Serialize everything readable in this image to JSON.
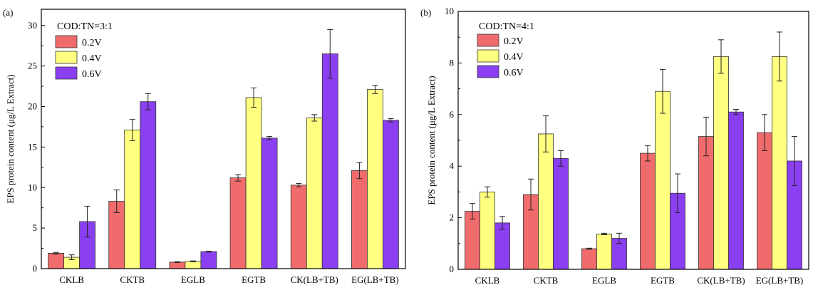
{
  "chart_data": [
    {
      "type": "bar",
      "panel_label": "(a)",
      "legend_title": "COD:TN=3:1",
      "legend_position": "top-left",
      "ylabel": "EPS protein content (μg/L Extract)",
      "xlabel": "",
      "ylim": [
        0,
        32
      ],
      "yticks": [
        0,
        5,
        10,
        15,
        20,
        25,
        30
      ],
      "categories": [
        "CKLB",
        "CKTB",
        "EGLB",
        "EGTB",
        "CK(LB+TB)",
        "EG(LB+TB)"
      ],
      "series": [
        {
          "name": "0.2V",
          "color": "#f06b6b",
          "values": [
            1.9,
            8.3,
            0.8,
            11.2,
            10.3,
            12.1
          ],
          "errors": [
            0.1,
            1.4,
            0.05,
            0.4,
            0.2,
            1.0
          ]
        },
        {
          "name": "0.4V",
          "color": "#ffff80",
          "values": [
            1.4,
            17.1,
            0.9,
            21.1,
            18.6,
            22.1
          ],
          "errors": [
            0.3,
            1.3,
            0.05,
            1.2,
            0.4,
            0.5
          ]
        },
        {
          "name": "0.6V",
          "color": "#8a3ff0",
          "values": [
            5.8,
            20.6,
            2.1,
            16.1,
            26.5,
            18.3
          ],
          "errors": [
            1.9,
            1.0,
            0.05,
            0.2,
            3.0,
            0.2
          ]
        }
      ]
    },
    {
      "type": "bar",
      "panel_label": "(b)",
      "legend_title": "COD:TN=4:1",
      "legend_position": "top-left",
      "ylabel": "EPS protein content (μg/L Extract)",
      "xlabel": "",
      "ylim": [
        0,
        10
      ],
      "yticks": [
        0,
        2,
        4,
        6,
        8,
        10
      ],
      "categories": [
        "CKLB",
        "CKTB",
        "EGLB",
        "EGTB",
        "CK(LB+TB)",
        "EG(LB+TB)"
      ],
      "series": [
        {
          "name": "0.2V",
          "color": "#f06b6b",
          "values": [
            2.25,
            2.9,
            0.8,
            4.5,
            5.15,
            5.3
          ],
          "errors": [
            0.3,
            0.6,
            0.02,
            0.3,
            0.75,
            0.7
          ]
        },
        {
          "name": "0.4V",
          "color": "#ffff80",
          "values": [
            3.0,
            5.25,
            1.37,
            6.9,
            8.25,
            8.25
          ],
          "errors": [
            0.2,
            0.7,
            0.03,
            0.85,
            0.65,
            0.95
          ]
        },
        {
          "name": "0.6V",
          "color": "#8a3ff0",
          "values": [
            1.8,
            4.3,
            1.2,
            2.95,
            6.1,
            4.2
          ],
          "errors": [
            0.25,
            0.3,
            0.2,
            0.75,
            0.1,
            0.95
          ]
        }
      ]
    }
  ]
}
